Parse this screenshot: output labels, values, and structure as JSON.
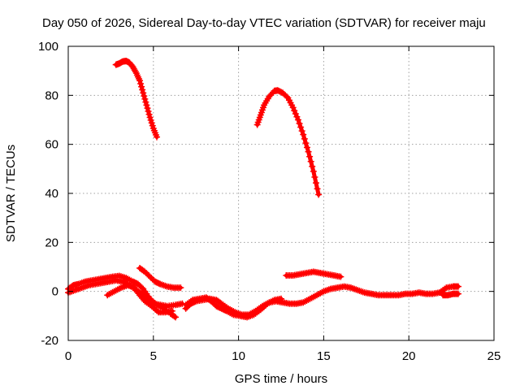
{
  "chart_data": {
    "type": "scatter",
    "title": "Day 050 of 2026, Sidereal Day-to-day VTEC variation (SDTVAR) for receiver maju",
    "xlabel": "GPS time / hours",
    "ylabel": "SDTVAR / TECUs",
    "xlim": [
      0,
      25
    ],
    "ylim": [
      -20,
      100
    ],
    "xticks": [
      0,
      5,
      10,
      15,
      20,
      25
    ],
    "yticks": [
      -20,
      0,
      20,
      40,
      60,
      80,
      100
    ],
    "grid": true,
    "legend": "none",
    "marker": "+",
    "series": [
      {
        "name": "arc-high-1",
        "color": "#ff0000",
        "points": [
          [
            2.8,
            92.5
          ],
          [
            3.0,
            93
          ],
          [
            3.2,
            93.8
          ],
          [
            3.4,
            94
          ],
          [
            3.6,
            93.3
          ],
          [
            3.8,
            91.5
          ],
          [
            4.0,
            89
          ],
          [
            4.2,
            86
          ],
          [
            4.4,
            81
          ],
          [
            4.6,
            76
          ],
          [
            4.8,
            71
          ],
          [
            5.0,
            66.5
          ],
          [
            5.2,
            63
          ]
        ]
      },
      {
        "name": "arc-high-2",
        "color": "#ff0000",
        "points": [
          [
            11.1,
            68
          ],
          [
            11.3,
            72
          ],
          [
            11.5,
            76
          ],
          [
            11.8,
            79.5
          ],
          [
            12.1,
            81.8
          ],
          [
            12.3,
            82
          ],
          [
            12.6,
            81
          ],
          [
            12.9,
            79
          ],
          [
            13.2,
            75
          ],
          [
            13.5,
            70
          ],
          [
            13.8,
            64
          ],
          [
            14.1,
            57
          ],
          [
            14.4,
            49
          ],
          [
            14.7,
            39.5
          ]
        ]
      },
      {
        "name": "arc-low-a",
        "color": "#ff0000",
        "points": [
          [
            0.0,
            1
          ],
          [
            0.3,
            2.5
          ],
          [
            0.6,
            3
          ],
          [
            1.0,
            4
          ],
          [
            1.4,
            4.5
          ],
          [
            1.8,
            5
          ],
          [
            2.2,
            5.5
          ],
          [
            2.6,
            6
          ],
          [
            3.0,
            6.3
          ],
          [
            3.4,
            5.5
          ],
          [
            3.8,
            4
          ],
          [
            4.1,
            3
          ],
          [
            4.4,
            1
          ],
          [
            4.8,
            -3
          ],
          [
            5.2,
            -5.5
          ],
          [
            5.6,
            -7
          ],
          [
            6.0,
            -9
          ],
          [
            6.3,
            -10.5
          ]
        ]
      },
      {
        "name": "arc-low-b",
        "color": "#ff0000",
        "points": [
          [
            0.0,
            -0.5
          ],
          [
            0.4,
            0.5
          ],
          [
            0.8,
            1.5
          ],
          [
            1.2,
            2.5
          ],
          [
            1.6,
            3
          ],
          [
            2.0,
            3.5
          ],
          [
            2.4,
            4
          ],
          [
            2.8,
            4.5
          ],
          [
            3.2,
            4
          ],
          [
            3.5,
            3
          ],
          [
            3.9,
            1
          ],
          [
            4.2,
            -1.5
          ],
          [
            4.5,
            -4
          ],
          [
            4.9,
            -6
          ],
          [
            5.3,
            -8.5
          ],
          [
            5.7,
            -8.5
          ],
          [
            6.1,
            -8
          ]
        ]
      },
      {
        "name": "arc-low-c",
        "color": "#ff0000",
        "points": [
          [
            4.2,
            9.5
          ],
          [
            4.5,
            8
          ],
          [
            4.8,
            6
          ],
          [
            5.1,
            4
          ],
          [
            5.4,
            3
          ],
          [
            5.8,
            2
          ],
          [
            6.2,
            1.5
          ],
          [
            6.6,
            1.5
          ]
        ]
      },
      {
        "name": "arc-low-d",
        "color": "#ff0000",
        "points": [
          [
            2.3,
            -1.5
          ],
          [
            2.7,
            0
          ],
          [
            3.1,
            1.5
          ],
          [
            3.5,
            2.5
          ],
          [
            3.8,
            2
          ],
          [
            4.1,
            0
          ],
          [
            4.4,
            -1.5
          ],
          [
            4.7,
            -3.5
          ],
          [
            5.0,
            -5
          ],
          [
            5.4,
            -5.5
          ],
          [
            5.8,
            -6
          ],
          [
            6.3,
            -5.5
          ],
          [
            6.7,
            -5
          ]
        ]
      },
      {
        "name": "arc-low-e",
        "color": "#ff0000",
        "points": [
          [
            6.9,
            -7
          ],
          [
            7.2,
            -5
          ],
          [
            7.5,
            -4
          ],
          [
            7.9,
            -3.5
          ],
          [
            8.3,
            -3
          ],
          [
            8.7,
            -3.5
          ],
          [
            9.0,
            -5
          ],
          [
            9.4,
            -7
          ],
          [
            9.8,
            -8.5
          ],
          [
            10.2,
            -9.5
          ],
          [
            10.6,
            -9.5
          ],
          [
            11.0,
            -8
          ],
          [
            11.4,
            -6
          ],
          [
            11.8,
            -4.5
          ],
          [
            12.2,
            -4
          ],
          [
            12.6,
            -4.5
          ],
          [
            13.0,
            -5
          ],
          [
            13.4,
            -5
          ],
          [
            13.8,
            -4.5
          ],
          [
            14.2,
            -3
          ],
          [
            14.6,
            -1.5
          ],
          [
            15.0,
            0
          ],
          [
            15.4,
            1
          ],
          [
            15.8,
            1.5
          ],
          [
            16.2,
            2
          ],
          [
            16.6,
            1.5
          ],
          [
            17.0,
            0.5
          ],
          [
            17.4,
            -0.5
          ],
          [
            17.8,
            -1
          ],
          [
            18.2,
            -1.5
          ],
          [
            18.6,
            -1.5
          ],
          [
            19.0,
            -1.5
          ],
          [
            19.4,
            -1.5
          ],
          [
            19.8,
            -1
          ],
          [
            20.2,
            -1
          ],
          [
            20.6,
            -0.5
          ],
          [
            21.0,
            -1
          ],
          [
            21.4,
            -1
          ],
          [
            21.8,
            -0.5
          ],
          [
            22.2,
            1.5
          ],
          [
            22.6,
            2
          ],
          [
            22.9,
            2
          ]
        ]
      },
      {
        "name": "arc-low-f",
        "color": "#ff0000",
        "points": [
          [
            6.9,
            -5.5
          ],
          [
            7.3,
            -3.5
          ],
          [
            7.7,
            -3
          ],
          [
            8.1,
            -2.5
          ],
          [
            8.4,
            -4
          ],
          [
            8.7,
            -6
          ],
          [
            9.0,
            -7
          ],
          [
            9.3,
            -8
          ],
          [
            9.7,
            -9.5
          ],
          [
            10.1,
            -10
          ],
          [
            10.5,
            -10.5
          ],
          [
            10.9,
            -9.5
          ],
          [
            11.3,
            -7.5
          ],
          [
            11.7,
            -5
          ],
          [
            12.1,
            -3.5
          ],
          [
            12.5,
            -3
          ]
        ]
      },
      {
        "name": "arc-low-g",
        "color": "#ff0000",
        "points": [
          [
            12.8,
            6.5
          ],
          [
            13.2,
            6.5
          ],
          [
            13.6,
            7
          ],
          [
            14.0,
            7.5
          ],
          [
            14.4,
            8
          ],
          [
            14.8,
            7.5
          ],
          [
            15.2,
            7
          ],
          [
            15.6,
            6.5
          ],
          [
            16.0,
            6
          ]
        ]
      },
      {
        "name": "arc-low-h",
        "color": "#ff0000",
        "points": [
          [
            22.0,
            -1.5
          ],
          [
            22.3,
            -1.5
          ],
          [
            22.6,
            -1
          ],
          [
            22.9,
            -1
          ]
        ]
      }
    ]
  }
}
